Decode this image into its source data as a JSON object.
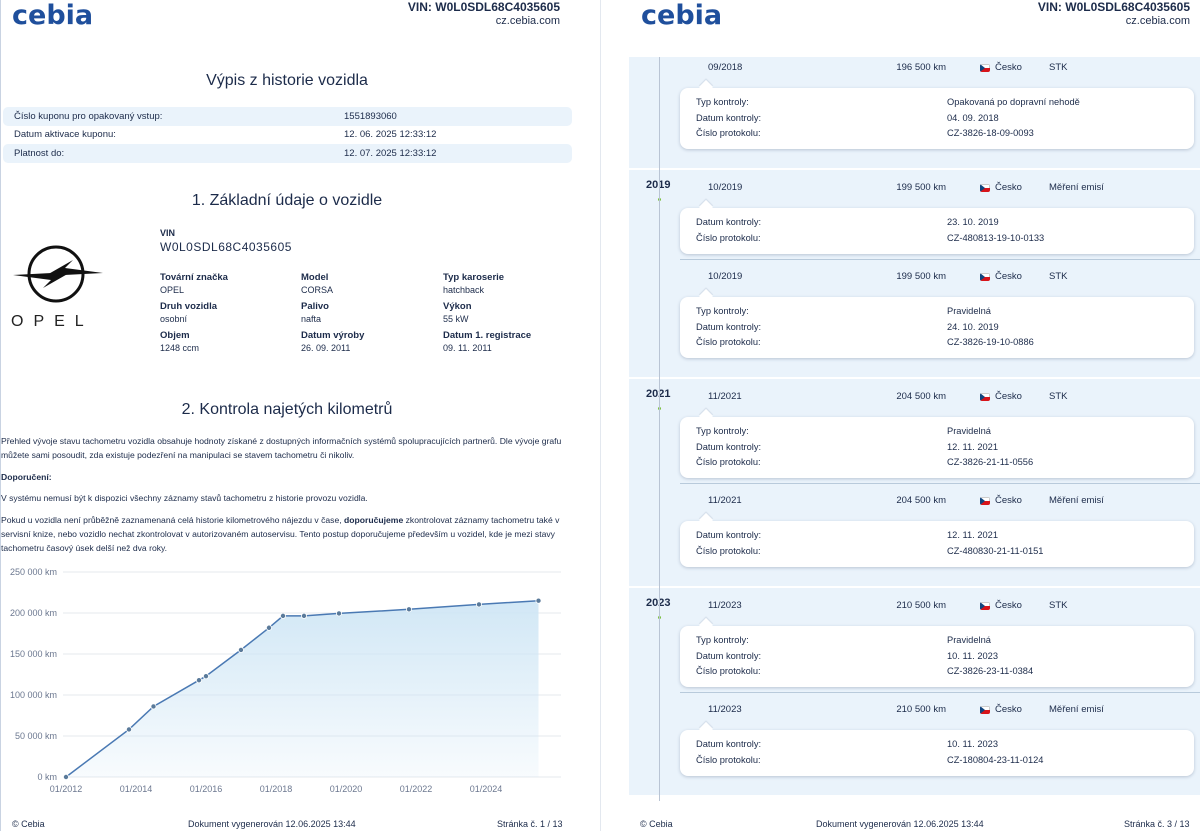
{
  "header": {
    "logo": "cebia",
    "vin": "VIN: W0L0SDL68C4035605",
    "site": "cz.cebia.com"
  },
  "left": {
    "title": "Výpis z historie vozidla",
    "coupon": [
      {
        "label": "Číslo kuponu pro opakovaný vstup:",
        "value": "1551893060"
      },
      {
        "label": "Datum aktivace kuponu:",
        "value": "12. 06. 2025 12:33:12"
      },
      {
        "label": "Platnost do:",
        "value": "12. 07. 2025 12:33:12"
      }
    ],
    "section1": "1. Základní údaje o vozidle",
    "brand_word": "OPEL",
    "vin_label": "VIN",
    "vin_value": "W0L0SDL68C4035605",
    "specs": [
      {
        "label": "Tovární značka",
        "value": "OPEL"
      },
      {
        "label": "Model",
        "value": "CORSA"
      },
      {
        "label": "Typ karoserie",
        "value": "hatchback"
      },
      {
        "label": "Druh vozidla",
        "value": "osobní"
      },
      {
        "label": "Palivo",
        "value": "nafta"
      },
      {
        "label": "Výkon",
        "value": "55 kW"
      },
      {
        "label": "Objem",
        "value": "1248 ccm"
      },
      {
        "label": "Datum výroby",
        "value": "26. 09. 2011"
      },
      {
        "label": "Datum 1. registrace",
        "value": "09. 11. 2011"
      }
    ],
    "section2": "2. Kontrola najetých kilometrů",
    "para1": "Přehled vývoje stavu tachometru vozidla obsahuje hodnoty získané z dostupných informačních systémů spolupracujících partnerů. Dle vývoje grafu můžete sami posoudit, zda existuje podezření na manipulaci se stavem tachometru či nikoliv.",
    "rec_label": "Doporučení:",
    "para2": "V systému nemusí být k dispozici všechny záznamy stavů tachometru z historie provozu vozidla.",
    "para3a": "Pokud u vozidla není průběžně zaznamenaná celá historie kilometrového nájezdu v čase, ",
    "para3b": "doporučujeme",
    "para3c": " zkontrolovat záznamy tachometru také v servisní knize, nebo vozidlo nechat zkontrolovat v autorizovaném autoservisu. Tento postup doporučujeme především u vozidel, kde je mezi stavy tachometru časový úsek delší než dva roky.",
    "footer": {
      "copy": "© Cebia",
      "generated": "Dokument vygenerován 12.06.2025 13:44",
      "page": "Stránka č. 1 / 13"
    }
  },
  "chart_data": {
    "type": "area",
    "x_ticks": [
      "01/2012",
      "01/2014",
      "01/2016",
      "01/2018",
      "01/2020",
      "01/2022",
      "01/2024"
    ],
    "y_ticks": [
      "0 km",
      "50 000 km",
      "100 000 km",
      "150 000 km",
      "200 000 km",
      "250 000 km"
    ],
    "ylim": [
      0,
      250000
    ],
    "xlim": [
      2012.0,
      2026.0
    ],
    "points": [
      [
        2012.0,
        0
      ],
      [
        2013.8,
        58000
      ],
      [
        2014.5,
        86000
      ],
      [
        2015.8,
        118000
      ],
      [
        2016.0,
        123000
      ],
      [
        2017.0,
        155000
      ],
      [
        2017.8,
        182000
      ],
      [
        2018.2,
        196500
      ],
      [
        2018.8,
        196500
      ],
      [
        2019.8,
        199500
      ],
      [
        2021.8,
        204500
      ],
      [
        2023.8,
        210500
      ],
      [
        2025.5,
        215000
      ]
    ],
    "color": "#4a79b3",
    "fill": "#cfe6f5"
  },
  "right": {
    "years": [
      {
        "year": "",
        "entries": [
          {
            "date": "09/2018",
            "km": "196 500 km",
            "country": "Česko",
            "type": "STK",
            "rows": [
              [
                "Typ kontroly:",
                "Opakovaná po dopravní nehodě"
              ],
              [
                "Datum kontroly:",
                "04. 09. 2018"
              ],
              [
                "Číslo protokolu:",
                "CZ-3826-18-09-0093"
              ]
            ]
          }
        ]
      },
      {
        "year": "2019",
        "entries": [
          {
            "date": "10/2019",
            "km": "199 500 km",
            "country": "Česko",
            "type": "Měření emisí",
            "rows": [
              [
                "Datum kontroly:",
                "23. 10. 2019"
              ],
              [
                "Číslo protokolu:",
                "CZ-480813-19-10-0133"
              ]
            ]
          },
          {
            "date": "10/2019",
            "km": "199 500 km",
            "country": "Česko",
            "type": "STK",
            "rows": [
              [
                "Typ kontroly:",
                "Pravidelná"
              ],
              [
                "Datum kontroly:",
                "24. 10. 2019"
              ],
              [
                "Číslo protokolu:",
                "CZ-3826-19-10-0886"
              ]
            ]
          }
        ]
      },
      {
        "year": "2021",
        "entries": [
          {
            "date": "11/2021",
            "km": "204 500 km",
            "country": "Česko",
            "type": "STK",
            "rows": [
              [
                "Typ kontroly:",
                "Pravidelná"
              ],
              [
                "Datum kontroly:",
                "12. 11. 2021"
              ],
              [
                "Číslo protokolu:",
                "CZ-3826-21-11-0556"
              ]
            ]
          },
          {
            "date": "11/2021",
            "km": "204 500 km",
            "country": "Česko",
            "type": "Měření emisí",
            "rows": [
              [
                "Datum kontroly:",
                "12. 11. 2021"
              ],
              [
                "Číslo protokolu:",
                "CZ-480830-21-11-0151"
              ]
            ]
          }
        ]
      },
      {
        "year": "2023",
        "entries": [
          {
            "date": "11/2023",
            "km": "210 500 km",
            "country": "Česko",
            "type": "STK",
            "rows": [
              [
                "Typ kontroly:",
                "Pravidelná"
              ],
              [
                "Datum kontroly:",
                "10. 11. 2023"
              ],
              [
                "Číslo protokolu:",
                "CZ-3826-23-11-0384"
              ]
            ]
          },
          {
            "date": "11/2023",
            "km": "210 500 km",
            "country": "Česko",
            "type": "Měření emisí",
            "rows": [
              [
                "Datum kontroly:",
                "10. 11. 2023"
              ],
              [
                "Číslo protokolu:",
                "CZ-180804-23-11-0124"
              ]
            ]
          }
        ]
      }
    ],
    "footer": {
      "copy": "© Cebia",
      "generated": "Dokument vygenerován 12.06.2025 13:44",
      "page": "Stránka č. 3 / 13"
    }
  }
}
